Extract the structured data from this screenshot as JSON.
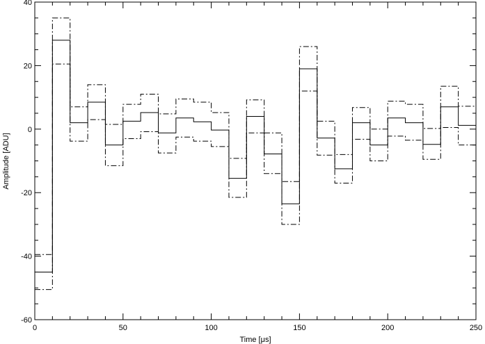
{
  "chart_data": {
    "type": "line",
    "step": true,
    "title": "",
    "xlabel": "Time [μs]",
    "ylabel": "Amplitude [ADU]",
    "xlim": [
      0,
      250
    ],
    "ylim": [
      -60,
      40
    ],
    "xticks": [
      0,
      50,
      100,
      150,
      200,
      250
    ],
    "yticks": [
      -60,
      -40,
      -20,
      0,
      20,
      40
    ],
    "xtick_labels": [
      "0",
      "50",
      "100",
      "150",
      "200",
      "250"
    ],
    "ytick_labels": [
      "-60",
      "-40",
      "-20",
      "0",
      "20",
      "40"
    ],
    "grid": false,
    "legend": "none",
    "bin_edges": [
      0,
      10,
      20,
      30,
      40,
      50,
      60,
      70,
      80,
      90,
      100,
      110,
      120,
      130,
      140,
      150,
      160,
      170,
      180,
      190,
      200,
      210,
      220,
      230,
      240,
      250
    ],
    "series": [
      {
        "style": "solid",
        "color": "#000000",
        "values": [
          -45,
          28,
          2,
          8.5,
          -5,
          2.5,
          5.2,
          -1.2,
          3.5,
          2.3,
          -0.3,
          -15.5,
          4,
          -7.8,
          -23.5,
          19,
          -2.8,
          -12.5,
          2,
          -5,
          3.5,
          2,
          -4.8,
          7,
          1.2
        ]
      },
      {
        "style": "dashdot",
        "color": "#000000",
        "values": [
          -50.5,
          35,
          7,
          14,
          1.5,
          7.8,
          11,
          4.8,
          9.5,
          8.5,
          5.2,
          -9.2,
          9.2,
          -1.2,
          -16.5,
          26,
          2.5,
          -8,
          6.8,
          0,
          8.8,
          7.8,
          0.2,
          13.5,
          7.2
        ]
      },
      {
        "style": "dashdot",
        "color": "#000000",
        "values": [
          -39.5,
          20.5,
          -3.8,
          3,
          -11.5,
          -3,
          -0.8,
          -7.5,
          -2.5,
          -3.8,
          -5.5,
          -21.5,
          -1.2,
          -14,
          -30,
          12,
          -8.2,
          -17,
          -3.2,
          -10,
          -2.2,
          -3.5,
          -9.5,
          0.5,
          -5
        ]
      }
    ]
  }
}
